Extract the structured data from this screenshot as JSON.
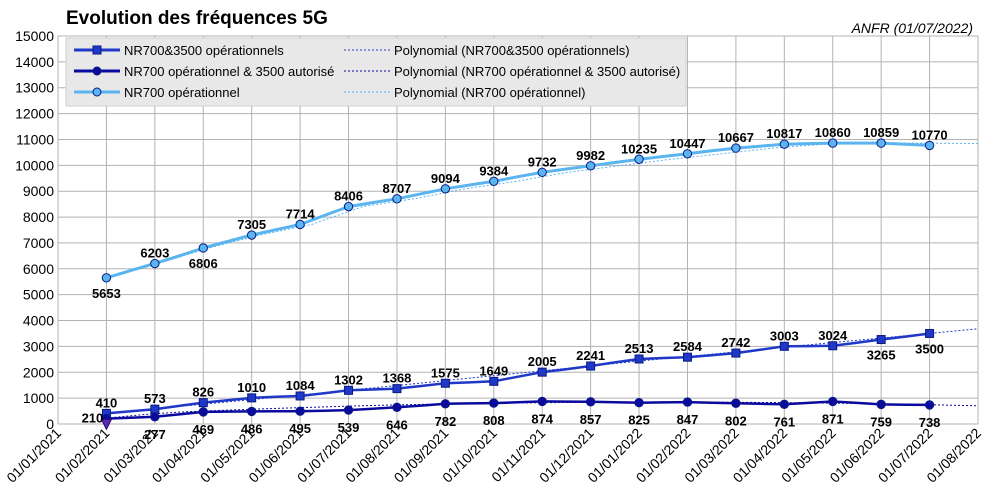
{
  "chart_data": {
    "type": "line",
    "title": "Evolution des fréquences 5G",
    "source": "ANFR (01/07/2022)",
    "x_ticks": [
      "01/01/2021",
      "01/02/2021",
      "01/03/2021",
      "01/04/2021",
      "01/05/2021",
      "01/06/2021",
      "01/07/2021",
      "01/08/2021",
      "01/09/2021",
      "01/10/2021",
      "01/11/2021",
      "01/12/2021",
      "01/01/2022",
      "01/02/2022",
      "01/03/2022",
      "01/04/2022",
      "01/05/2022",
      "01/06/2022",
      "01/07/2022",
      "01/08/2022"
    ],
    "y_ticks": [
      "0",
      "1000",
      "2000",
      "3000",
      "4000",
      "5000",
      "6000",
      "7000",
      "8000",
      "9000",
      "10000",
      "11000",
      "12000",
      "13000",
      "14000",
      "15000"
    ],
    "ylim": [
      0,
      15000
    ],
    "grid": true,
    "legend_position": "top-left",
    "x": [
      "01/02/2021",
      "15/02/2021",
      "01/03/2021",
      "15/03/2021",
      "01/04/2021",
      "15/04/2021",
      "01/05/2021",
      "15/05/2021",
      "01/06/2021",
      "15/06/2021",
      "01/07/2021",
      "15/07/2021",
      "01/08/2021",
      "15/08/2021",
      "01/09/2021",
      "15/09/2021",
      "01/10/2021",
      "15/10/2021",
      "01/11/2021",
      "15/11/2021",
      "01/12/2021",
      "15/12/2021",
      "01/01/2022",
      "15/01/2022",
      "01/02/2022",
      "15/02/2022",
      "01/03/2022",
      "15/03/2022",
      "01/04/2022",
      "15/04/2022",
      "01/05/2022",
      "15/05/2022",
      "01/06/2022",
      "15/06/2022",
      "01/07/2022"
    ],
    "series": [
      {
        "name": "NR700&3500 opérationnels",
        "color": "#1f38c8",
        "marker": "square",
        "values": [
          410,
          490,
          573,
          700,
          826,
          920,
          1010,
          1050,
          1084,
          1190,
          1302,
          1335,
          1368,
          1470,
          1575,
          1610,
          1649,
          1830,
          2005,
          2120,
          2241,
          2380,
          2513,
          2550,
          2584,
          2660,
          2742,
          2870,
          3003,
          3010,
          3024,
          3140,
          3265,
          3380,
          3500
        ],
        "labels": {
          "0": "410",
          "2": "573",
          "4": "826",
          "6": "1010",
          "8": "1084",
          "10": "1302",
          "12": "1368",
          "14": "1575",
          "16": "1649",
          "18": "2005",
          "20": "2241",
          "22": "2513",
          "24": "2584",
          "26": "2742",
          "28": "3003",
          "30": "3024",
          "32": "3265",
          "34": "3500"
        }
      },
      {
        "name": "NR700 opérationnel & 3500 autorisé",
        "color": "#0a0a9e",
        "marker": "circle",
        "values": [
          210,
          240,
          277,
          370,
          469,
          478,
          486,
          490,
          495,
          515,
          539,
          590,
          646,
          710,
          782,
          795,
          808,
          840,
          874,
          865,
          857,
          840,
          825,
          835,
          847,
          825,
          802,
          780,
          761,
          815,
          871,
          815,
          759,
          748,
          738
        ],
        "labels": {
          "0": "210",
          "2": "277",
          "4": "469",
          "6": "486",
          "8": "495",
          "10": "539",
          "12": "646",
          "14": "782",
          "16": "808",
          "18": "874",
          "20": "857",
          "22": "825",
          "24": "847",
          "26": "802",
          "28": "761",
          "30": "871",
          "32": "759",
          "34": "738"
        }
      },
      {
        "name": "NR700 opérationnel",
        "color": "#5ab4f0",
        "marker": "circle",
        "values": [
          5653,
          5930,
          6203,
          6500,
          6806,
          7060,
          7305,
          7510,
          7714,
          8060,
          8406,
          8560,
          8707,
          8900,
          9094,
          9240,
          9384,
          9560,
          9732,
          9860,
          9982,
          10110,
          10235,
          10340,
          10447,
          10560,
          10667,
          10740,
          10817,
          10840,
          10860,
          10860,
          10859,
          10815,
          10770
        ],
        "labels": {
          "0": "5653",
          "2": "6203",
          "4": "6806",
          "6": "7305",
          "8": "7714",
          "10": "8406",
          "12": "8707",
          "14": "9094",
          "16": "9384",
          "18": "9732",
          "20": "9982",
          "22": "10235",
          "24": "10447",
          "26": "10667",
          "28": "10817",
          "30": "10860",
          "32": "10859",
          "34": "10770"
        }
      }
    ],
    "trendlines": [
      {
        "name": "Polynomial (NR700&3500 opérationnels)",
        "color": "#1f38c8",
        "values": [
          430,
          520,
          615,
          712,
          810,
          910,
          1010,
          1112,
          1215,
          1318,
          1420,
          1525,
          1630,
          1738,
          1845,
          1952,
          2058,
          2165,
          2270,
          2374,
          2478,
          2580,
          2680,
          2780,
          2880,
          2980,
          3080,
          3180,
          3280,
          3380,
          3480,
          3580,
          3680
        ]
      },
      {
        "name": "Polynomial (NR700 opérationnel & 3500 autorisé)",
        "color": "#0a0a9e",
        "values": [
          230,
          380,
          480,
          540,
          600,
          650,
          700,
          740,
          770,
          795,
          815,
          830,
          840,
          845,
          845,
          840,
          830,
          815,
          795,
          770,
          740,
          705
        ]
      },
      {
        "name": "Polynomial (NR700 opérationnel)",
        "color": "#5ab4f0",
        "values": [
          5653,
          6203,
          6806,
          7305,
          7714,
          8406,
          8707,
          9094,
          9384,
          9732,
          9982,
          10235,
          10447,
          10667,
          10817,
          10860,
          10859,
          10840
        ]
      }
    ]
  }
}
